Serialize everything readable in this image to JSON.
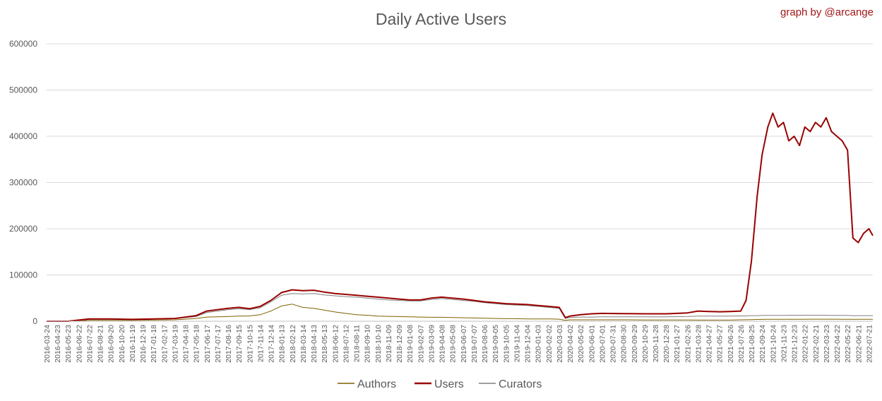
{
  "chart_data": {
    "type": "line",
    "title": "Daily Active Users",
    "credit": "graph by @arcange",
    "xlabel": "",
    "ylabel": "",
    "ylim": [
      0,
      600000
    ],
    "yticks": [
      "0",
      "100000",
      "200000",
      "300000",
      "400000",
      "500000",
      "600000"
    ],
    "grid": "horizontal",
    "legend_position": "bottom",
    "x_tick_labels": [
      "2016-03-24",
      "2016-04-23",
      "2016-05-23",
      "2016-06-22",
      "2016-07-22",
      "2016-08-21",
      "2016-09-20",
      "2016-10-20",
      "2016-11-19",
      "2016-12-19",
      "2017-01-18",
      "2017-02-17",
      "2017-03-19",
      "2017-04-18",
      "2017-05-18",
      "2017-06-17",
      "2017-07-17",
      "2017-08-16",
      "2017-09-15",
      "2017-10-15",
      "2017-11-14",
      "2017-12-14",
      "2018-01-13",
      "2018-02-12",
      "2018-03-14",
      "2018-04-13",
      "2018-05-13",
      "2018-06-12",
      "2018-07-12",
      "2018-08-11",
      "2018-09-10",
      "2018-10-10",
      "2018-11-09",
      "2018-12-09",
      "2019-01-08",
      "2019-02-07",
      "2019-03-09",
      "2019-04-08",
      "2019-05-08",
      "2019-06-07",
      "2019-07-07",
      "2019-08-06",
      "2019-09-05",
      "2019-10-05",
      "2019-11-04",
      "2019-12-04",
      "2020-01-03",
      "2020-02-02",
      "2020-03-03",
      "2020-04-02",
      "2020-05-02",
      "2020-06-01",
      "2020-07-01",
      "2020-07-31",
      "2020-08-30",
      "2020-09-29",
      "2020-10-29",
      "2020-11-28",
      "2020-12-28",
      "2021-01-27",
      "2021-02-26",
      "2021-03-28",
      "2021-04-27",
      "2021-05-27",
      "2021-06-26",
      "2021-07-26",
      "2021-08-25",
      "2021-09-24",
      "2021-10-24",
      "2021-11-23",
      "2021-12-23",
      "2022-01-22",
      "2022-02-21",
      "2022-03-23",
      "2022-04-22",
      "2022-05-22",
      "2022-06-21",
      "2022-07-21"
    ],
    "x": [
      "2016-03-24",
      "2016-05-23",
      "2016-07-22",
      "2016-09-20",
      "2016-11-19",
      "2017-01-18",
      "2017-03-19",
      "2017-05-18",
      "2017-06-17",
      "2017-07-17",
      "2017-08-16",
      "2017-09-15",
      "2017-10-15",
      "2017-11-14",
      "2017-12-14",
      "2018-01-13",
      "2018-02-12",
      "2018-03-14",
      "2018-04-13",
      "2018-05-13",
      "2018-06-12",
      "2018-07-12",
      "2018-08-11",
      "2018-09-10",
      "2018-10-10",
      "2018-11-09",
      "2018-12-09",
      "2019-01-08",
      "2019-02-07",
      "2019-03-09",
      "2019-04-08",
      "2019-05-08",
      "2019-06-07",
      "2019-07-07",
      "2019-08-06",
      "2019-09-05",
      "2019-10-05",
      "2019-11-04",
      "2019-12-04",
      "2020-01-03",
      "2020-02-02",
      "2020-03-03",
      "2020-03-20",
      "2020-04-02",
      "2020-05-02",
      "2020-06-01",
      "2020-07-01",
      "2020-08-30",
      "2020-10-29",
      "2020-12-28",
      "2021-02-26",
      "2021-03-28",
      "2021-04-27",
      "2021-05-27",
      "2021-06-26",
      "2021-07-26",
      "2021-08-10",
      "2021-08-25",
      "2021-09-10",
      "2021-09-24",
      "2021-10-10",
      "2021-10-24",
      "2021-11-08",
      "2021-11-23",
      "2021-12-08",
      "2021-12-23",
      "2022-01-07",
      "2022-01-22",
      "2022-02-06",
      "2022-02-21",
      "2022-03-08",
      "2022-03-23",
      "2022-04-07",
      "2022-04-22",
      "2022-05-07",
      "2022-05-22",
      "2022-06-06",
      "2022-06-21",
      "2022-07-06",
      "2022-07-21",
      "2022-08-01"
    ],
    "series": [
      {
        "name": "Authors",
        "color": "#7f6000",
        "values": [
          0,
          0,
          2000,
          2000,
          2000,
          2500,
          3000,
          6000,
          9000,
          9500,
          10000,
          11000,
          11500,
          14000,
          22000,
          33000,
          37000,
          30000,
          28000,
          24000,
          20000,
          17000,
          14000,
          13000,
          11000,
          10500,
          10000,
          9500,
          9000,
          8500,
          8500,
          8000,
          7500,
          7000,
          6500,
          6000,
          5500,
          5500,
          5000,
          5000,
          5000,
          4500,
          2000,
          3000,
          3000,
          3000,
          3000,
          3000,
          2800,
          2800,
          2600,
          2500,
          2500,
          2500,
          2500,
          3000,
          3200,
          3500,
          3800,
          4000,
          4200,
          4200,
          4300,
          4300,
          4300,
          4300,
          4300,
          4300,
          4400,
          4400,
          4400,
          4400,
          4400,
          4400,
          4300,
          4300,
          4200,
          4200,
          4200,
          4200,
          4200
        ]
      },
      {
        "name": "Users",
        "color": "#990000",
        "values": [
          0,
          0,
          5000,
          5000,
          4000,
          5000,
          6000,
          12000,
          22000,
          25000,
          28000,
          30000,
          27000,
          32000,
          45000,
          62000,
          68000,
          66000,
          67000,
          63000,
          60000,
          58000,
          56000,
          54000,
          52000,
          50000,
          48000,
          46000,
          46000,
          50000,
          52000,
          50000,
          48000,
          45000,
          42000,
          40000,
          38000,
          37000,
          36000,
          34000,
          32000,
          30000,
          8000,
          11000,
          14000,
          16000,
          17000,
          16500,
          16000,
          16000,
          18000,
          22000,
          21000,
          20500,
          21000,
          22000,
          45000,
          130000,
          270000,
          360000,
          420000,
          450000,
          420000,
          430000,
          390000,
          400000,
          380000,
          420000,
          410000,
          430000,
          420000,
          440000,
          410000,
          400000,
          390000,
          370000,
          180000,
          170000,
          190000,
          200000,
          185000
        ]
      },
      {
        "name": "Curators",
        "color": "#7f7f7f",
        "values": [
          0,
          0,
          4000,
          4000,
          3500,
          4500,
          5500,
          10000,
          19000,
          22000,
          25000,
          27000,
          25000,
          29000,
          42000,
          56000,
          60000,
          59000,
          60000,
          57000,
          55000,
          53000,
          52000,
          50000,
          48000,
          46000,
          45000,
          44000,
          44000,
          47000,
          49000,
          47000,
          45000,
          43000,
          40000,
          38000,
          36000,
          35000,
          34000,
          32000,
          30000,
          28000,
          6000,
          8000,
          9000,
          9000,
          9500,
          9500,
          9500,
          9500,
          10000,
          11000,
          11000,
          11000,
          11000,
          11500,
          11500,
          12000,
          12000,
          12500,
          12500,
          12500,
          12500,
          12500,
          13000,
          13000,
          13000,
          13000,
          13000,
          13000,
          13000,
          13000,
          12500,
          12500,
          12500,
          12500,
          12000,
          12000,
          12000,
          12000,
          12000
        ]
      }
    ]
  }
}
